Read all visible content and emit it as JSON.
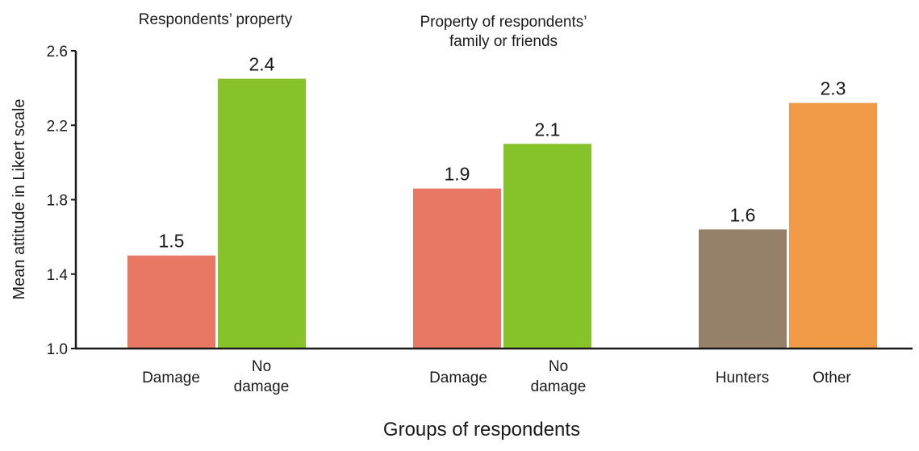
{
  "chart_data": {
    "type": "bar",
    "ylabel": "Mean attitude in Likert scale",
    "xlabel": "Groups of respondents",
    "ylim": [
      1.0,
      2.6
    ],
    "yticks": [
      "1.0",
      "1.4",
      "1.8",
      "2.2",
      "2.6"
    ],
    "grid": false,
    "groups": [
      {
        "title": [
          "Respondents’ property"
        ],
        "bars": [
          {
            "label": [
              "Damage"
            ],
            "value": 1.5,
            "value_label": "1.5",
            "color": "#e87763"
          },
          {
            "label": [
              "No",
              "damage"
            ],
            "value": 2.45,
            "value_label": "2.4",
            "color": "#86c22a"
          }
        ]
      },
      {
        "title": [
          "Property of respondents’",
          "family or friends"
        ],
        "bars": [
          {
            "label": [
              "Damage"
            ],
            "value": 1.86,
            "value_label": "1.9",
            "color": "#e87763"
          },
          {
            "label": [
              "No",
              "damage"
            ],
            "value": 2.1,
            "value_label": "2.1",
            "color": "#86c22a"
          }
        ]
      },
      {
        "title": [],
        "bars": [
          {
            "label": [
              "Hunters"
            ],
            "value": 1.64,
            "value_label": "1.6",
            "color": "#958169"
          },
          {
            "label": [
              "Other"
            ],
            "value": 2.32,
            "value_label": "2.3",
            "color": "#f09a48"
          }
        ]
      }
    ]
  }
}
